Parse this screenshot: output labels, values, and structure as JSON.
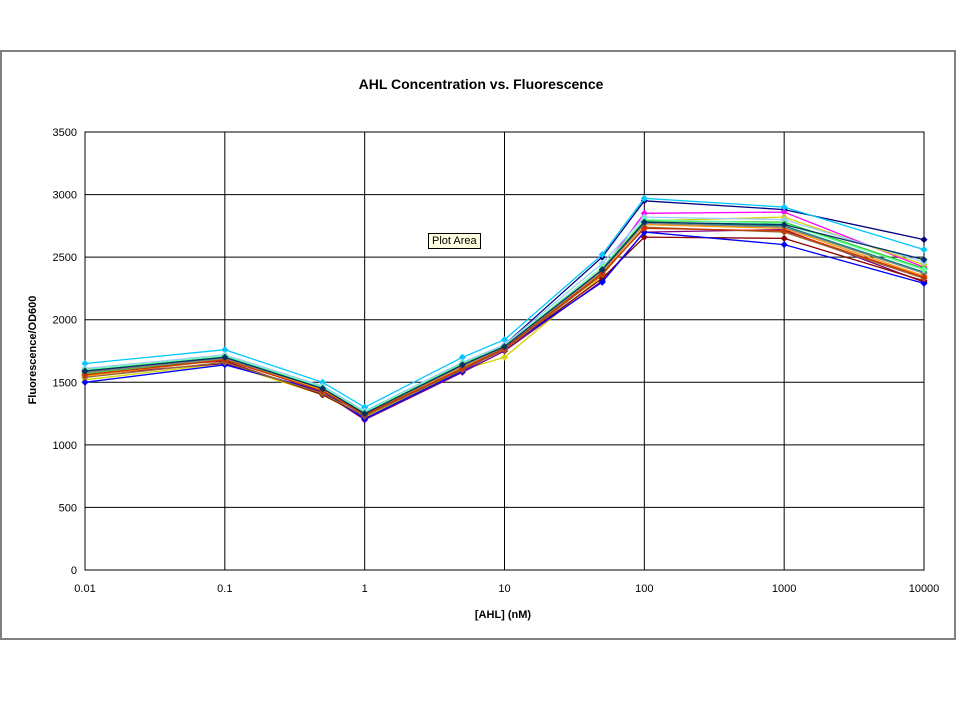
{
  "tooltip": "Plot Area",
  "chart_data": {
    "type": "line",
    "title": "AHL Concentration vs. Fluorescence",
    "xlabel": "[AHL] (nM)",
    "ylabel": "Fluorescence/OD600",
    "xscale": "log",
    "xlim": [
      0.01,
      10000
    ],
    "ylim": [
      0,
      3500
    ],
    "x_ticks": [
      "0.01",
      "0.1",
      "1",
      "10",
      "100",
      "1000",
      "10000"
    ],
    "y_ticks": [
      "0",
      "500",
      "1000",
      "1500",
      "2000",
      "2500",
      "3000",
      "3500"
    ],
    "grid": true,
    "legend": "none",
    "x": [
      0.01,
      0.1,
      0.5,
      1,
      5,
      10,
      50,
      100,
      1000,
      10000
    ],
    "series": [
      {
        "color": "#000080",
        "values": [
          1600,
          1700,
          1450,
          1250,
          1650,
          1800,
          2500,
          2950,
          2880,
          2640
        ]
      },
      {
        "color": "#ff00ff",
        "values": [
          1580,
          1690,
          1440,
          1240,
          1620,
          1780,
          2400,
          2850,
          2860,
          2420
        ]
      },
      {
        "color": "#d4d400",
        "values": [
          1520,
          1650,
          1400,
          1220,
          1600,
          1700,
          2350,
          2790,
          2820,
          2440
        ]
      },
      {
        "color": "#00c8ff",
        "values": [
          1650,
          1760,
          1500,
          1300,
          1700,
          1840,
          2520,
          2970,
          2900,
          2560
        ]
      },
      {
        "color": "#800080",
        "values": [
          1560,
          1650,
          1420,
          1200,
          1580,
          1750,
          2310,
          2700,
          2720,
          2300
        ]
      },
      {
        "color": "#8b0000",
        "values": [
          1590,
          1670,
          1400,
          1230,
          1610,
          1760,
          2330,
          2660,
          2650,
          2310
        ]
      },
      {
        "color": "#008080",
        "values": [
          1600,
          1700,
          1460,
          1250,
          1640,
          1790,
          2380,
          2780,
          2750,
          2380
        ]
      },
      {
        "color": "#0000ff",
        "values": [
          1500,
          1640,
          1430,
          1210,
          1590,
          1770,
          2300,
          2700,
          2600,
          2290
        ]
      },
      {
        "color": "#33cc33",
        "values": [
          1570,
          1690,
          1450,
          1260,
          1630,
          1780,
          2400,
          2790,
          2780,
          2410
        ]
      },
      {
        "color": "#ff9900",
        "values": [
          1550,
          1680,
          1440,
          1240,
          1620,
          1770,
          2380,
          2760,
          2730,
          2350
        ]
      },
      {
        "color": "#996633",
        "values": [
          1540,
          1660,
          1410,
          1230,
          1600,
          1760,
          2360,
          2740,
          2700,
          2330
        ]
      },
      {
        "color": "#99ccff",
        "values": [
          1610,
          1720,
          1470,
          1270,
          1660,
          1800,
          2450,
          2820,
          2800,
          2460
        ]
      },
      {
        "color": "#808080",
        "values": [
          1580,
          1690,
          1450,
          1250,
          1630,
          1780,
          2390,
          2770,
          2740,
          2370
        ]
      },
      {
        "color": "#cc3300",
        "values": [
          1560,
          1680,
          1430,
          1240,
          1610,
          1770,
          2370,
          2730,
          2710,
          2340
        ]
      },
      {
        "color": "#66ff99",
        "values": [
          1600,
          1710,
          1460,
          1260,
          1650,
          1790,
          2420,
          2800,
          2770,
          2400
        ]
      },
      {
        "color": "#003366",
        "values": [
          1590,
          1700,
          1450,
          1250,
          1640,
          1785,
          2400,
          2780,
          2760,
          2480
        ]
      }
    ]
  }
}
